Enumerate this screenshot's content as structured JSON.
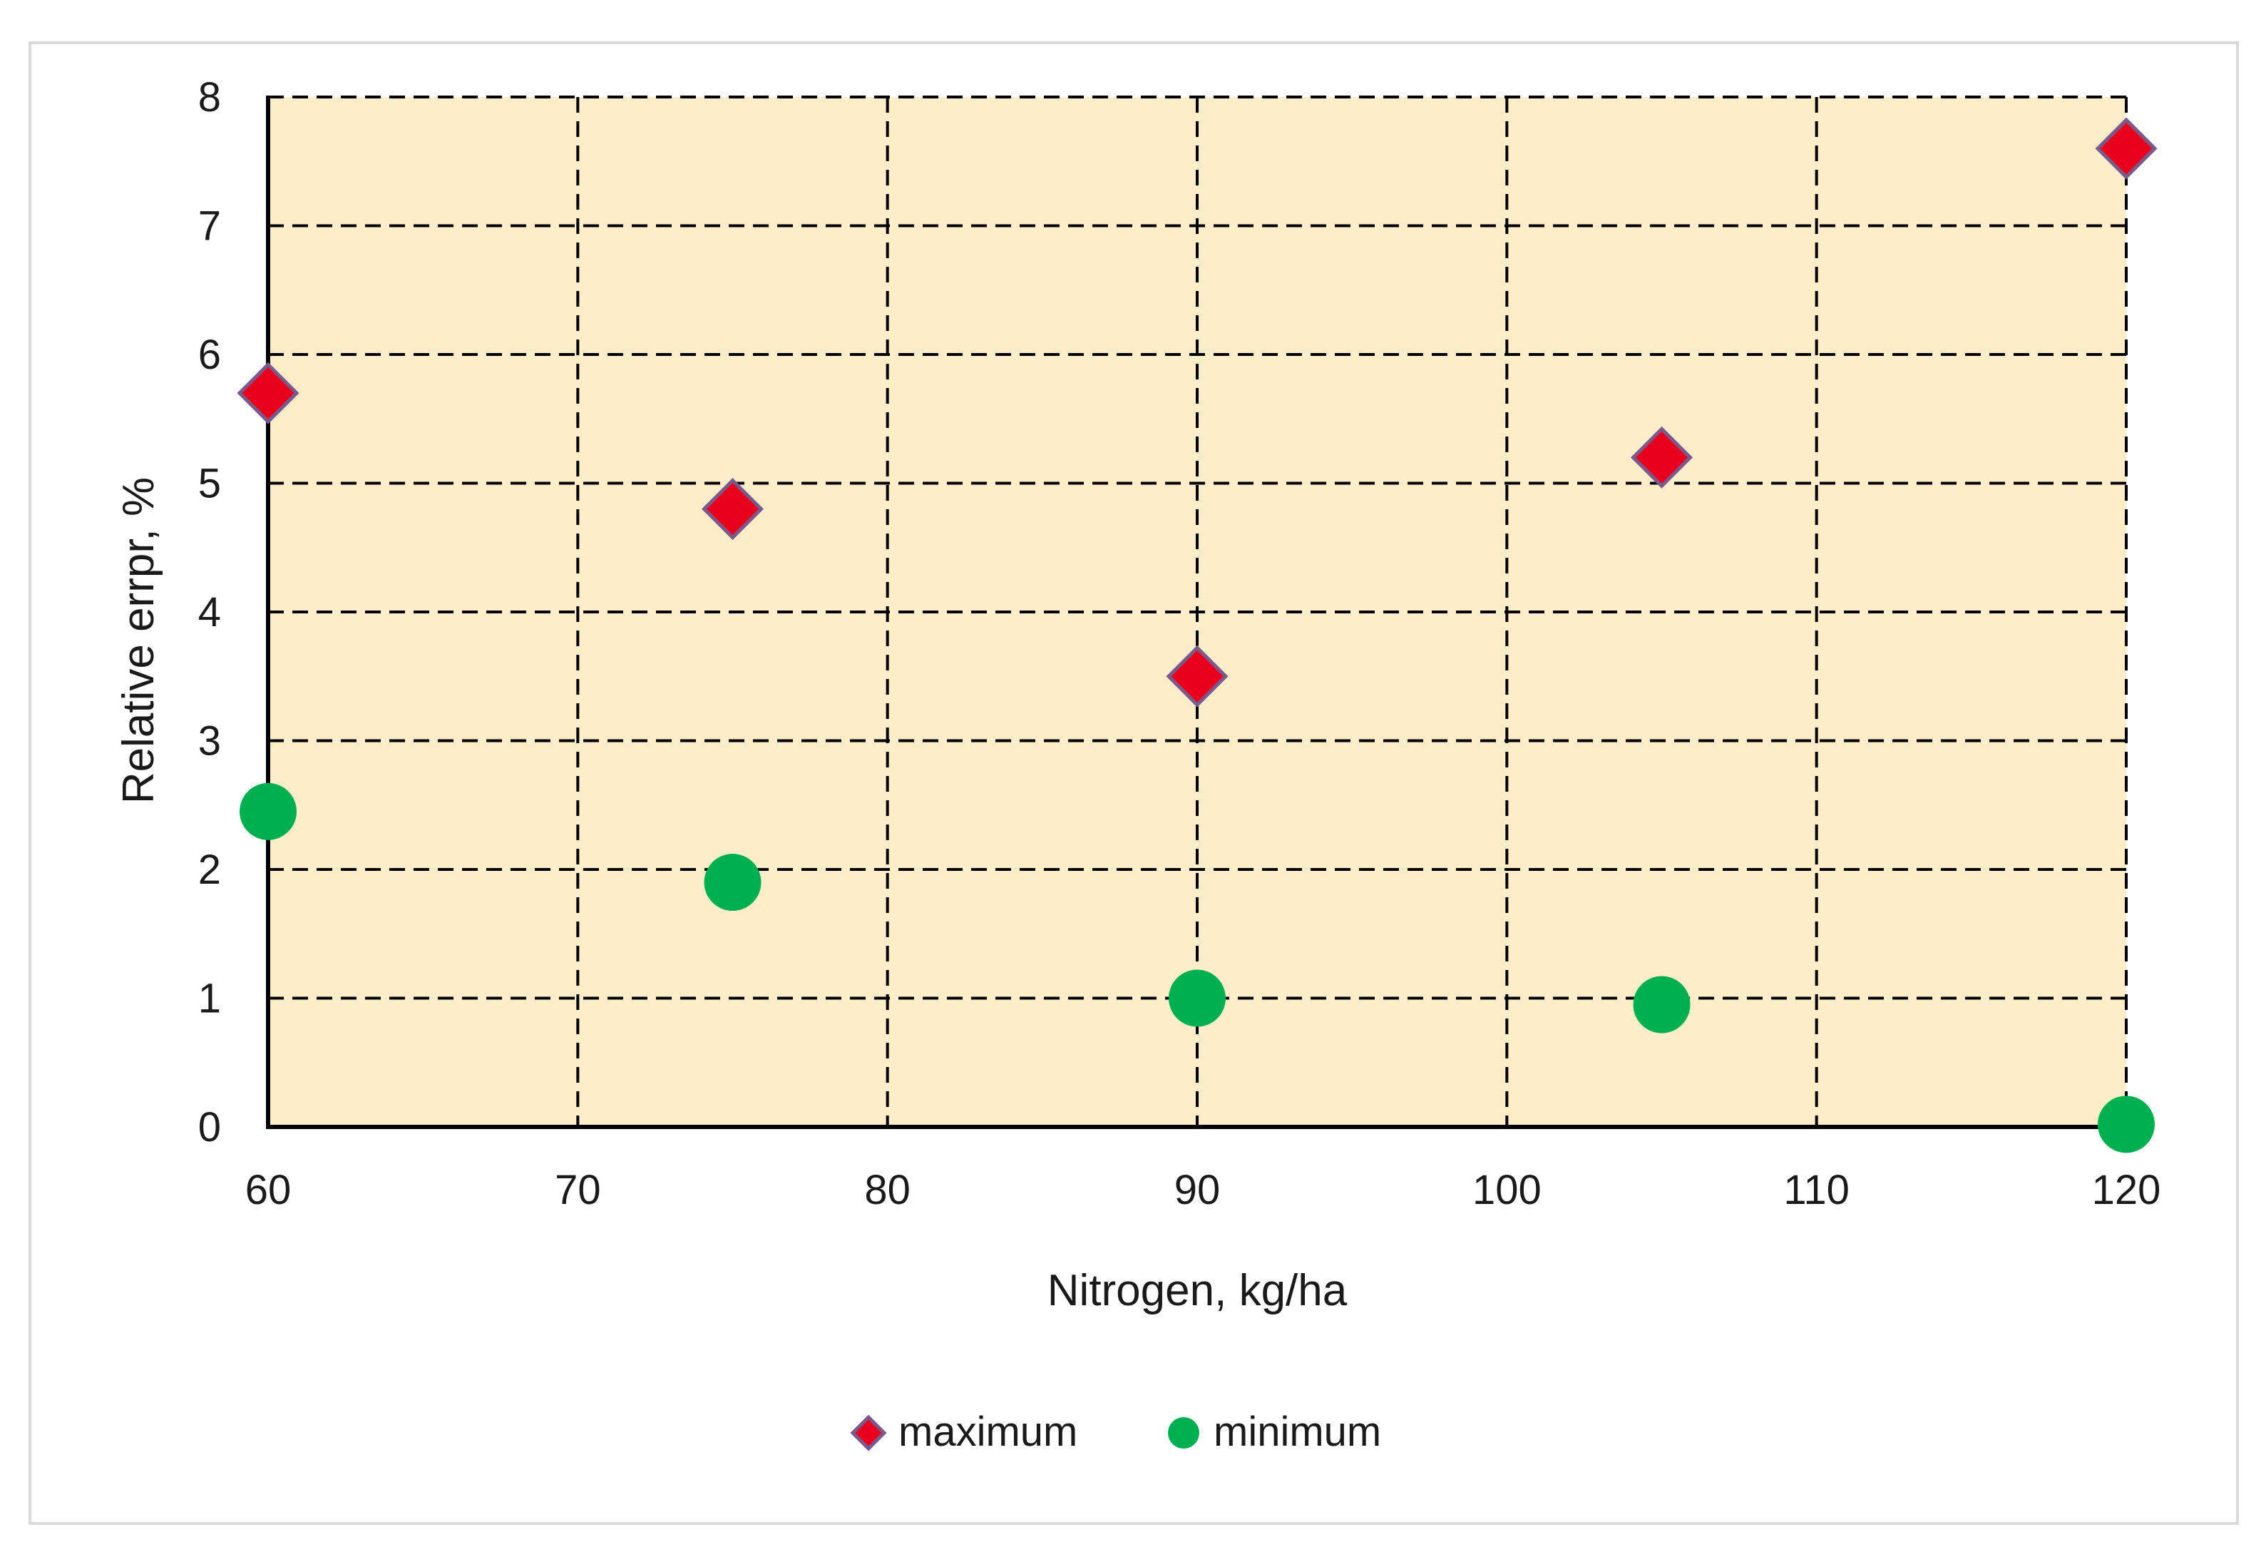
{
  "chart_data": {
    "type": "scatter",
    "xlabel": "Nitrogen, kg/ha",
    "ylabel": "Relative errpr, %",
    "xlim": [
      60,
      120
    ],
    "ylim": [
      0,
      8
    ],
    "x_ticks": [
      60,
      70,
      80,
      90,
      100,
      110,
      120
    ],
    "y_ticks": [
      0,
      1,
      2,
      3,
      4,
      5,
      6,
      7,
      8
    ],
    "grid": true,
    "legend_position": "bottom",
    "plot_background": "#fdeec9",
    "series": [
      {
        "name": "maximum",
        "marker": "diamond",
        "color": "#e8001c",
        "x": [
          60,
          75,
          90,
          105,
          120
        ],
        "y": [
          5.7,
          4.8,
          3.5,
          5.2,
          7.6
        ]
      },
      {
        "name": "minimum",
        "marker": "circle",
        "color": "#00b050",
        "x": [
          60,
          75,
          90,
          105,
          120
        ],
        "y": [
          2.45,
          1.9,
          1.0,
          0.95,
          0.02
        ]
      }
    ]
  }
}
